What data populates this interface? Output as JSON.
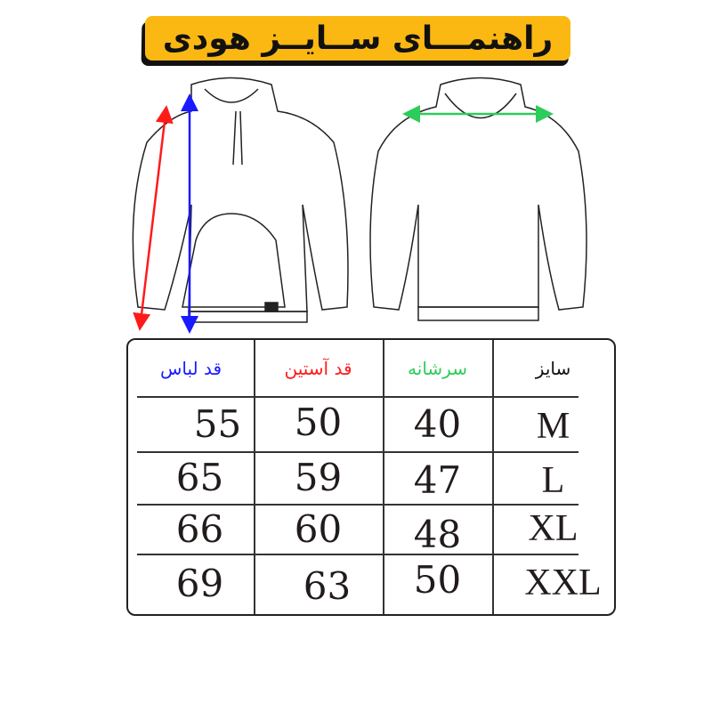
{
  "title": "راهنمـــای ســایــز هودی",
  "colors": {
    "title_bg": "#fbb812",
    "length": "#1a1aff",
    "sleeve": "#ff1a1a",
    "shoulder": "#2ecc5a"
  },
  "table": {
    "headers": {
      "length": "قد لباس",
      "sleeve": "قد آستین",
      "shoulder": "سرشانه",
      "size": "سایز"
    },
    "rows": [
      {
        "size": "M",
        "shoulder": "40",
        "sleeve": "50",
        "length": "55"
      },
      {
        "size": "L",
        "shoulder": "47",
        "sleeve": "59",
        "length": "65"
      },
      {
        "size": "XL",
        "shoulder": "48",
        "sleeve": "60",
        "length": "66"
      },
      {
        "size": "XXL",
        "shoulder": "50",
        "sleeve": "63",
        "length": "69"
      }
    ]
  }
}
